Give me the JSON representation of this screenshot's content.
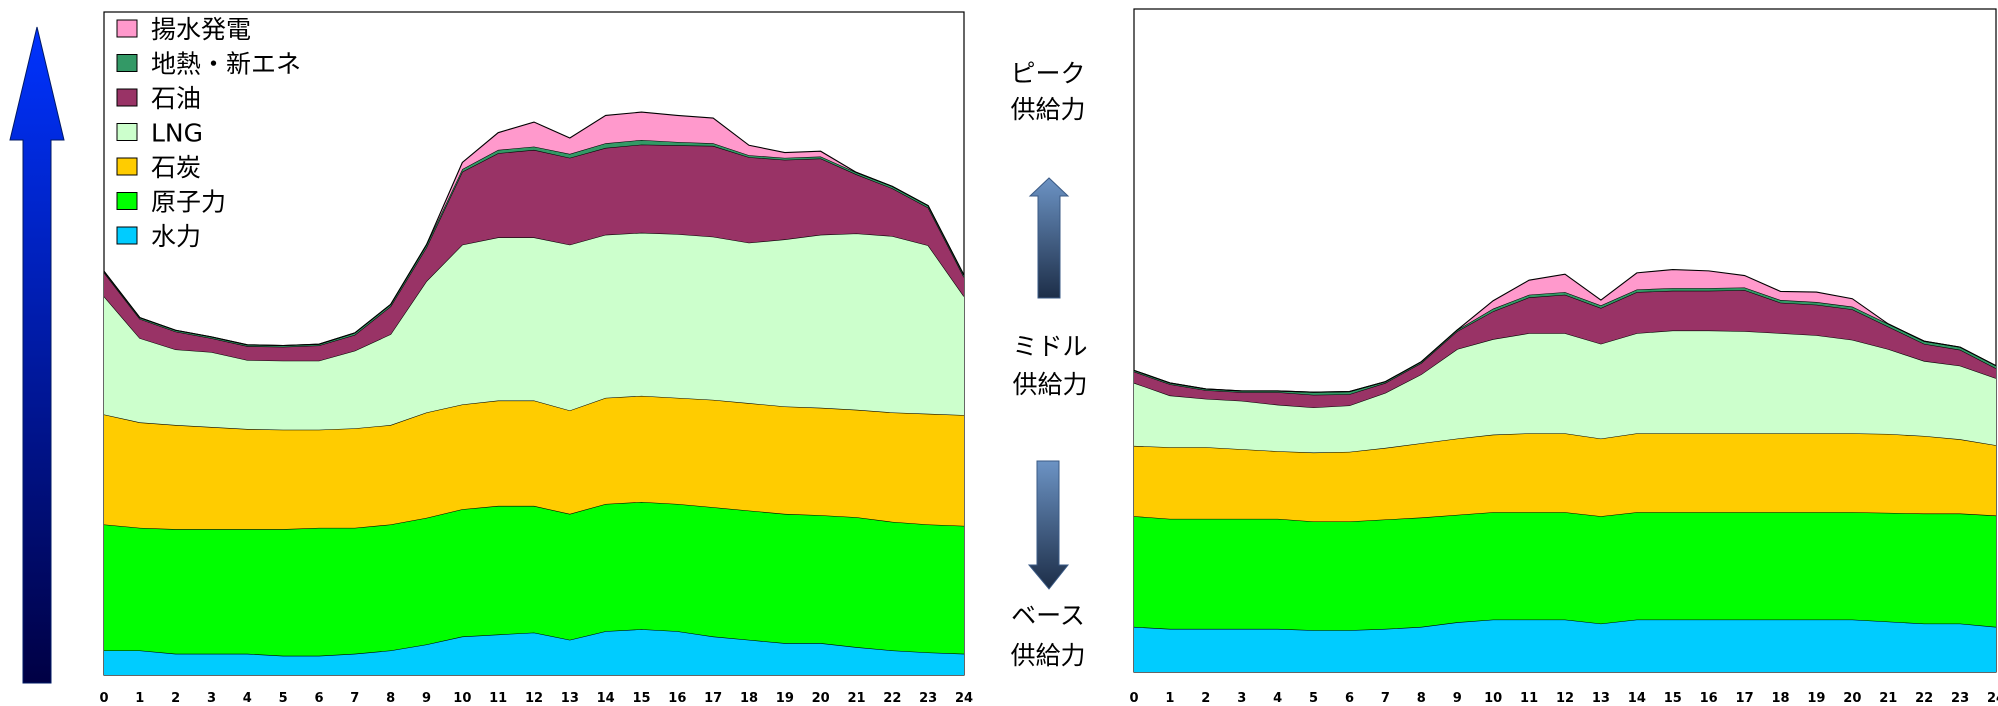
{
  "colors": {
    "揚水発電": "#ff99cc",
    "地熱・新エネ": "#339966",
    "石油": "#993366",
    "LNG": "#ccffcc",
    "石炭": "#ffcc00",
    "原子力": "#00ff00",
    "水力": "#00ccff"
  },
  "labels": {
    "peak": [
      "ピーク",
      "供給力"
    ],
    "middle": [
      "ミドル",
      "供給力"
    ],
    "base": [
      "ベース",
      "供給力"
    ]
  },
  "chart_data": [
    {
      "type": "area",
      "stacked": true,
      "x": [
        0,
        1,
        2,
        3,
        4,
        5,
        6,
        7,
        8,
        9,
        10,
        11,
        12,
        13,
        14,
        15,
        16,
        17,
        18,
        19,
        20,
        21,
        22,
        23,
        24
      ],
      "ylim": [
        0,
        100
      ],
      "legend_position": "top-left",
      "series": [
        {
          "name": "水力",
          "values": [
            3.7,
            3.7,
            3.2,
            3.2,
            3.2,
            2.9,
            2.9,
            3.2,
            3.7,
            4.6,
            5.8,
            6.1,
            6.4,
            5.3,
            6.6,
            6.9,
            6.6,
            5.8,
            5.3,
            4.8,
            4.8,
            4.2,
            3.7,
            3.4,
            3.2
          ]
        },
        {
          "name": "原子力",
          "values": [
            19.0,
            18.5,
            18.8,
            18.8,
            18.8,
            19.1,
            19.3,
            19.0,
            19.0,
            19.1,
            19.2,
            19.4,
            19.1,
            19.0,
            19.2,
            19.2,
            19.2,
            19.5,
            19.5,
            19.5,
            19.3,
            19.6,
            19.4,
            19.3,
            19.3
          ]
        },
        {
          "name": "石炭",
          "values": [
            16.6,
            15.9,
            15.7,
            15.4,
            15.1,
            15.0,
            14.8,
            15.0,
            15.0,
            15.9,
            15.8,
            15.9,
            15.9,
            15.6,
            16.0,
            16.0,
            16.0,
            16.2,
            16.2,
            16.2,
            16.2,
            16.2,
            16.5,
            16.7,
            16.7
          ]
        },
        {
          "name": "LNG",
          "values": [
            17.8,
            12.7,
            11.4,
            11.3,
            10.4,
            10.4,
            10.4,
            11.7,
            13.7,
            19.8,
            24.1,
            24.6,
            24.6,
            25.0,
            24.6,
            24.6,
            24.7,
            24.6,
            24.2,
            25.2,
            26.1,
            26.6,
            26.6,
            25.4,
            17.9
          ]
        },
        {
          "name": "石油",
          "values": [
            3.6,
            2.9,
            2.7,
            2.1,
            2.1,
            2.1,
            2.3,
            2.4,
            4.2,
            5.1,
            11.0,
            12.7,
            13.2,
            13.1,
            13.1,
            13.3,
            13.4,
            13.7,
            12.9,
            12.0,
            11.5,
            8.9,
            7.2,
            5.7,
            2.9
          ]
        },
        {
          "name": "地熱・新エネ",
          "values": [
            0.2,
            0.2,
            0.2,
            0.2,
            0.2,
            0.2,
            0.2,
            0.3,
            0.3,
            0.4,
            0.4,
            0.5,
            0.5,
            0.6,
            0.7,
            0.7,
            0.5,
            0.4,
            0.3,
            0.3,
            0.3,
            0.3,
            0.3,
            0.3,
            0.3
          ]
        },
        {
          "name": "揚水発電",
          "values": [
            0,
            0,
            0,
            0,
            0,
            0,
            0,
            0,
            0,
            0,
            1.0,
            2.6,
            3.7,
            2.4,
            4.2,
            4.2,
            4.0,
            3.8,
            1.5,
            0.8,
            0.8,
            0,
            0,
            0,
            0
          ]
        }
      ]
    },
    {
      "type": "area",
      "stacked": true,
      "x": [
        0,
        1,
        2,
        3,
        4,
        5,
        6,
        7,
        8,
        9,
        10,
        11,
        12,
        13,
        14,
        15,
        16,
        17,
        18,
        19,
        20,
        21,
        22,
        23,
        24
      ],
      "ylim": [
        0,
        100
      ],
      "series": [
        {
          "name": "水力",
          "values": [
            6.8,
            6.5,
            6.5,
            6.5,
            6.5,
            6.3,
            6.3,
            6.5,
            6.8,
            7.5,
            7.9,
            7.9,
            7.9,
            7.3,
            7.9,
            7.9,
            7.9,
            7.9,
            7.9,
            7.9,
            7.9,
            7.6,
            7.3,
            7.3,
            6.8
          ]
        },
        {
          "name": "原子力",
          "values": [
            16.7,
            16.6,
            16.6,
            16.6,
            16.6,
            16.4,
            16.4,
            16.5,
            16.5,
            16.2,
            16.2,
            16.2,
            16.2,
            16.2,
            16.2,
            16.2,
            16.2,
            16.2,
            16.2,
            16.2,
            16.2,
            16.4,
            16.6,
            16.6,
            16.8
          ]
        },
        {
          "name": "石炭",
          "values": [
            10.6,
            10.8,
            10.8,
            10.5,
            10.2,
            10.4,
            10.5,
            10.8,
            11.2,
            11.5,
            11.7,
            11.9,
            11.9,
            11.7,
            11.9,
            11.9,
            11.9,
            11.9,
            11.9,
            11.9,
            11.9,
            11.9,
            11.7,
            11.2,
            10.6
          ]
        },
        {
          "name": "LNG",
          "values": [
            9.5,
            7.8,
            7.3,
            7.3,
            7.0,
            6.8,
            7.0,
            8.3,
            10.4,
            13.5,
            14.4,
            15.1,
            15.1,
            14.3,
            15.1,
            15.5,
            15.5,
            15.4,
            15.1,
            14.8,
            14.1,
            12.8,
            11.3,
            11.1,
            10.1
          ]
        },
        {
          "name": "石油",
          "values": [
            1.7,
            1.7,
            1.3,
            1.3,
            1.9,
            1.9,
            1.7,
            1.5,
            1.7,
            2.7,
            4.2,
            5.4,
            5.8,
            5.4,
            6.2,
            6.0,
            6.0,
            6.2,
            4.6,
            4.6,
            4.6,
            3.4,
            2.6,
            2.4,
            1.5
          ]
        },
        {
          "name": "地熱・新エネ",
          "values": [
            0.2,
            0.2,
            0.2,
            0.2,
            0.2,
            0.4,
            0.4,
            0.2,
            0.2,
            0.2,
            0.4,
            0.4,
            0.4,
            0.4,
            0.4,
            0.4,
            0.4,
            0.4,
            0.4,
            0.4,
            0.4,
            0.4,
            0.4,
            0.4,
            0.4
          ]
        },
        {
          "name": "揚水発電",
          "values": [
            0,
            0,
            0,
            0,
            0,
            0,
            0,
            0,
            0,
            0,
            1.2,
            2.2,
            2.7,
            0.8,
            2.5,
            2.8,
            2.6,
            1.8,
            1.3,
            1.5,
            1.2,
            0,
            0,
            0,
            0
          ]
        }
      ]
    }
  ]
}
